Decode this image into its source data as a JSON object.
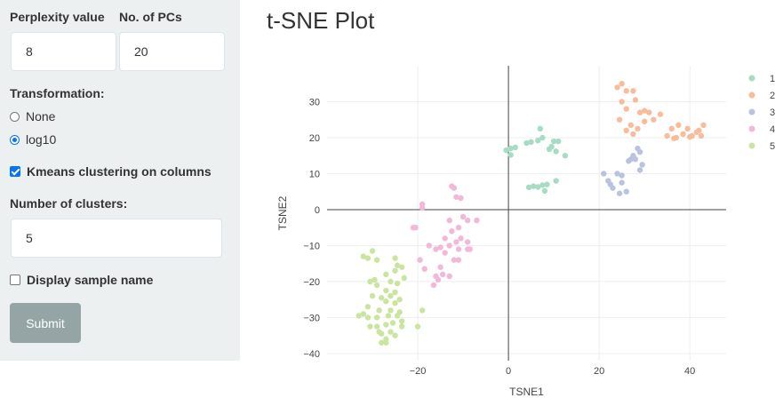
{
  "sidebar": {
    "perplexity_label": "Perplexity value",
    "perplexity_value": "8",
    "pcs_label": "No. of PCs",
    "pcs_value": "20",
    "transformation_label": "Transformation:",
    "transformation_options": [
      "None",
      "log10"
    ],
    "transformation_selected": "log10",
    "kmeans_label": "Kmeans clustering on columns",
    "kmeans_checked": true,
    "clusters_label": "Number of clusters:",
    "clusters_value": "5",
    "sample_name_label": "Display sample name",
    "sample_name_checked": false,
    "submit_label": "Submit"
  },
  "main": {
    "title": "t-SNE Plot"
  },
  "colors": {
    "accent": "#0075ff",
    "sidebar_bg": "#ecf0f1",
    "submit_bg": "#95a5a6"
  },
  "chart_data": {
    "type": "scatter",
    "title": "",
    "xlabel": "TSNE1",
    "ylabel": "TSNE2",
    "xlim": [
      -40,
      48
    ],
    "ylim": [
      -42,
      40
    ],
    "xticks": [
      -20,
      0,
      20,
      40
    ],
    "yticks": [
      -40,
      -30,
      -20,
      -10,
      0,
      10,
      20,
      30
    ],
    "grid": true,
    "legend": "top-right",
    "series": [
      {
        "name": "1",
        "color": "#a6dcc4",
        "points": [
          [
            -0.5,
            16.5
          ],
          [
            0.5,
            17
          ],
          [
            1.5,
            17.3
          ],
          [
            0.5,
            15.2
          ],
          [
            4,
            18.5
          ],
          [
            5,
            18.8
          ],
          [
            7,
            22.5
          ],
          [
            7.5,
            20
          ],
          [
            6.5,
            19.2
          ],
          [
            10,
            19
          ],
          [
            11,
            19
          ],
          [
            9.5,
            17.5
          ],
          [
            10.5,
            16.2
          ],
          [
            12.5,
            15
          ],
          [
            9,
            16.8
          ],
          [
            4.5,
            6.2
          ],
          [
            5.5,
            6.5
          ],
          [
            6.5,
            6.3
          ],
          [
            7.5,
            6.8
          ],
          [
            8,
            5.2
          ],
          [
            10.5,
            8
          ],
          [
            8.5,
            7
          ]
        ]
      },
      {
        "name": "2",
        "color": "#f9bc9b",
        "points": [
          [
            24,
            34
          ],
          [
            25,
            35
          ],
          [
            26,
            33
          ],
          [
            27.5,
            33
          ],
          [
            25,
            30
          ],
          [
            26,
            28
          ],
          [
            28,
            30.5
          ],
          [
            29,
            27
          ],
          [
            30,
            27.5
          ],
          [
            31,
            27
          ],
          [
            32,
            25
          ],
          [
            33.5,
            26.5
          ],
          [
            30,
            24.5
          ],
          [
            27,
            23.5
          ],
          [
            28.5,
            22.5
          ],
          [
            26,
            22
          ],
          [
            27.5,
            21
          ],
          [
            24.5,
            25
          ],
          [
            35,
            20.5
          ],
          [
            36,
            22.5
          ],
          [
            37.5,
            23.5
          ],
          [
            37,
            20
          ],
          [
            38.5,
            21
          ],
          [
            39.5,
            22.5
          ],
          [
            40.5,
            20.5
          ],
          [
            41.5,
            21.5
          ],
          [
            42,
            22
          ],
          [
            42.5,
            20.5
          ],
          [
            43,
            23.5
          ],
          [
            36.5,
            19.8
          ],
          [
            40,
            20.2
          ]
        ]
      },
      {
        "name": "3",
        "color": "#b9c3e0",
        "points": [
          [
            21,
            10
          ],
          [
            22,
            8
          ],
          [
            23,
            6
          ],
          [
            24,
            10
          ],
          [
            25,
            7.5
          ],
          [
            26,
            5
          ],
          [
            25,
            9.5
          ],
          [
            22.5,
            7
          ],
          [
            24.5,
            4.5
          ],
          [
            26.5,
            13.5
          ],
          [
            27.5,
            15
          ],
          [
            28.5,
            17
          ],
          [
            29,
            16
          ],
          [
            28,
            14
          ],
          [
            29.5,
            12.5
          ],
          [
            27,
            14
          ],
          [
            29,
            11
          ]
        ]
      },
      {
        "name": "4",
        "color": "#f2b8d8",
        "points": [
          [
            -19,
            1.5
          ],
          [
            -19,
            0.5
          ],
          [
            -21,
            -5
          ],
          [
            -20.5,
            -5
          ],
          [
            -17.5,
            -10
          ],
          [
            -16,
            -11
          ],
          [
            -15,
            -10.5
          ],
          [
            -13,
            -10
          ],
          [
            -14,
            -12
          ],
          [
            -12,
            -14
          ],
          [
            -11,
            -14
          ],
          [
            -11.5,
            -9
          ],
          [
            -10.5,
            -8
          ],
          [
            -12.5,
            -6
          ],
          [
            -14,
            -8
          ],
          [
            -11,
            -5
          ],
          [
            -13,
            -3
          ],
          [
            -10,
            -2
          ],
          [
            -7,
            -3
          ],
          [
            -9,
            -3
          ],
          [
            -9,
            -11
          ],
          [
            -11,
            -11
          ],
          [
            -8.5,
            -11
          ],
          [
            -9,
            -9
          ],
          [
            -12.5,
            6.5
          ],
          [
            -12,
            6
          ],
          [
            -11.5,
            3.5
          ],
          [
            -10.5,
            3.2
          ],
          [
            -13,
            -18.5
          ],
          [
            -14.5,
            -18
          ],
          [
            -16,
            -18.5
          ],
          [
            -15,
            -16
          ],
          [
            -16.5,
            -21
          ],
          [
            -18.5,
            -16.5
          ],
          [
            -19.5,
            -14
          ],
          [
            -15.5,
            -19.5
          ]
        ]
      },
      {
        "name": "5",
        "color": "#c9e5a0",
        "points": [
          [
            -30,
            -11.5
          ],
          [
            -31,
            -13.5
          ],
          [
            -32,
            -13
          ],
          [
            -29,
            -14
          ],
          [
            -25,
            -13.5
          ],
          [
            -24.5,
            -15.5
          ],
          [
            -23.5,
            -16
          ],
          [
            -25,
            -17
          ],
          [
            -27,
            -18
          ],
          [
            -29.5,
            -19.5
          ],
          [
            -30.5,
            -20
          ],
          [
            -29,
            -21
          ],
          [
            -26,
            -20
          ],
          [
            -24.5,
            -20.5
          ],
          [
            -23,
            -19
          ],
          [
            -27,
            -22.5
          ],
          [
            -25,
            -23
          ],
          [
            -26,
            -24
          ],
          [
            -28,
            -24.5
          ],
          [
            -30,
            -24
          ],
          [
            -27,
            -25.5
          ],
          [
            -25,
            -26
          ],
          [
            -24,
            -25
          ],
          [
            -26,
            -28
          ],
          [
            -24,
            -28.5
          ],
          [
            -28.5,
            -28
          ],
          [
            -29,
            -30
          ],
          [
            -31,
            -30
          ],
          [
            -32,
            -29
          ],
          [
            -33,
            -29.5
          ],
          [
            -26.5,
            -29.5
          ],
          [
            -24.5,
            -29.5
          ],
          [
            -23.5,
            -31
          ],
          [
            -25.5,
            -31.5
          ],
          [
            -27,
            -32
          ],
          [
            -29,
            -32.5
          ],
          [
            -30.5,
            -32.5
          ],
          [
            -26,
            -34
          ],
          [
            -28,
            -34.5
          ],
          [
            -27,
            -36
          ],
          [
            -28,
            -37
          ],
          [
            -27,
            -37
          ],
          [
            -28.5,
            -34
          ],
          [
            -19,
            -28
          ],
          [
            -20,
            -32.5
          ],
          [
            -23.5,
            -32.5
          ],
          [
            -31,
            -27
          ],
          [
            -25,
            -35
          ]
        ]
      }
    ]
  }
}
